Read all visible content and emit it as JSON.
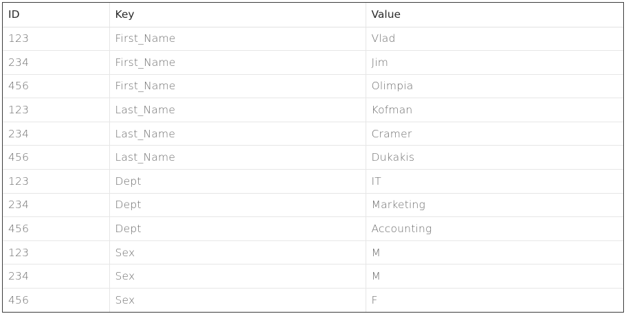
{
  "table": {
    "columns": [
      "ID",
      "Key",
      "Value"
    ],
    "rows": [
      [
        "123",
        "First_Name",
        "Vlad"
      ],
      [
        "234",
        "First_Name",
        "Jim"
      ],
      [
        "456",
        "First_Name",
        "Olimpia"
      ],
      [
        "123",
        "Last_Name",
        "Kofman"
      ],
      [
        "234",
        "Last_Name",
        "Cramer"
      ],
      [
        "456",
        "Last_Name",
        "Dukakis"
      ],
      [
        "123",
        "Dept",
        "IT"
      ],
      [
        "234",
        "Dept",
        "Marketing"
      ],
      [
        "456",
        "Dept",
        "Accounting"
      ],
      [
        "123",
        "Sex",
        "M"
      ],
      [
        "234",
        "Sex",
        "M"
      ],
      [
        "456",
        "Sex",
        "F"
      ]
    ]
  }
}
